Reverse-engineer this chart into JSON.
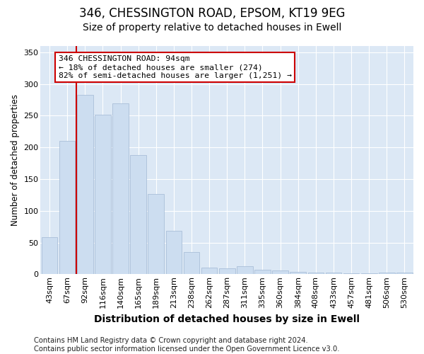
{
  "title1": "346, CHESSINGTON ROAD, EPSOM, KT19 9EG",
  "title2": "Size of property relative to detached houses in Ewell",
  "xlabel": "Distribution of detached houses by size in Ewell",
  "ylabel": "Number of detached properties",
  "categories": [
    "43sqm",
    "67sqm",
    "92sqm",
    "116sqm",
    "140sqm",
    "165sqm",
    "189sqm",
    "213sqm",
    "238sqm",
    "262sqm",
    "287sqm",
    "311sqm",
    "335sqm",
    "360sqm",
    "384sqm",
    "408sqm",
    "433sqm",
    "457sqm",
    "481sqm",
    "506sqm",
    "530sqm"
  ],
  "values": [
    58,
    210,
    283,
    252,
    270,
    188,
    127,
    68,
    35,
    10,
    9,
    13,
    7,
    6,
    4,
    3,
    2,
    1,
    1,
    2,
    3
  ],
  "bar_color": "#ccddf0",
  "bar_edgecolor": "#aabfd8",
  "vline_x_index": 2,
  "vline_color": "#cc0000",
  "annotation_text": "346 CHESSINGTON ROAD: 94sqm\n← 18% of detached houses are smaller (274)\n82% of semi-detached houses are larger (1,251) →",
  "annotation_box_facecolor": "#ffffff",
  "annotation_box_edgecolor": "#cc0000",
  "ylim": [
    0,
    360
  ],
  "yticks": [
    0,
    50,
    100,
    150,
    200,
    250,
    300,
    350
  ],
  "footer": "Contains HM Land Registry data © Crown copyright and database right 2024.\nContains public sector information licensed under the Open Government Licence v3.0.",
  "background_color": "#ffffff",
  "plot_background_color": "#dce8f5",
  "title1_fontsize": 12,
  "title2_fontsize": 10,
  "xlabel_fontsize": 10,
  "ylabel_fontsize": 8.5,
  "tick_fontsize": 8,
  "grid_color": "#ffffff",
  "footer_fontsize": 7.2
}
